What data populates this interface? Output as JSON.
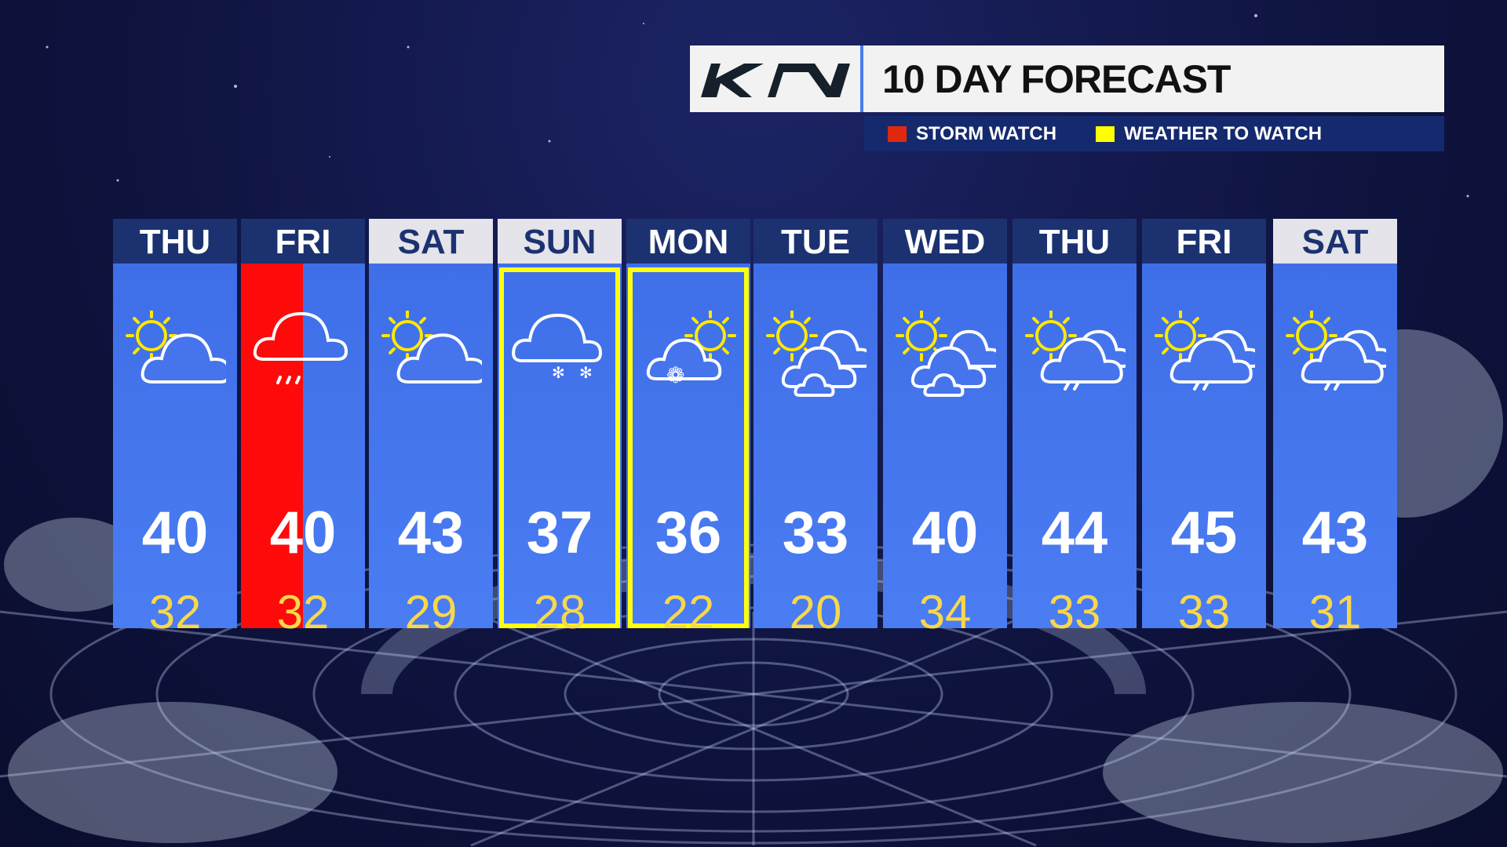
{
  "header": {
    "logo_text": "KIA",
    "title": "10 DAY FORECAST"
  },
  "legend": [
    {
      "label": "STORM WATCH",
      "color": "#e0280e"
    },
    {
      "label": "WEATHER TO WATCH",
      "color": "#ffff00"
    }
  ],
  "days": [
    {
      "day": "THU",
      "hi": "40",
      "lo": "32",
      "icon": "partly-cloudy-icon",
      "status": "none",
      "header_style": "dark"
    },
    {
      "day": "FRI",
      "hi": "40",
      "lo": "32",
      "icon": "rain-cloud-icon",
      "status": "storm-watch",
      "header_style": "dark"
    },
    {
      "day": "SAT",
      "hi": "43",
      "lo": "29",
      "icon": "partly-cloudy-icon",
      "status": "none",
      "header_style": "light"
    },
    {
      "day": "SUN",
      "hi": "37",
      "lo": "28",
      "icon": "snow-cloud-icon",
      "status": "weather-to-watch",
      "header_style": "light"
    },
    {
      "day": "MON",
      "hi": "36",
      "lo": "22",
      "icon": "sun-snow-cloud-icon",
      "status": "weather-to-watch",
      "header_style": "dark"
    },
    {
      "day": "TUE",
      "hi": "33",
      "lo": "20",
      "icon": "sun-clouds-icon",
      "status": "none",
      "header_style": "dark"
    },
    {
      "day": "WED",
      "hi": "40",
      "lo": "34",
      "icon": "sun-clouds-icon",
      "status": "none",
      "header_style": "dark"
    },
    {
      "day": "THU",
      "hi": "44",
      "lo": "33",
      "icon": "sun-cloud-drizzle-icon",
      "status": "none",
      "header_style": "dark"
    },
    {
      "day": "FRI",
      "hi": "45",
      "lo": "33",
      "icon": "sun-cloud-drizzle-icon",
      "status": "none",
      "header_style": "dark"
    },
    {
      "day": "SAT",
      "hi": "43",
      "lo": "31",
      "icon": "sun-cloud-drizzle-icon",
      "status": "none",
      "header_style": "light"
    }
  ]
}
